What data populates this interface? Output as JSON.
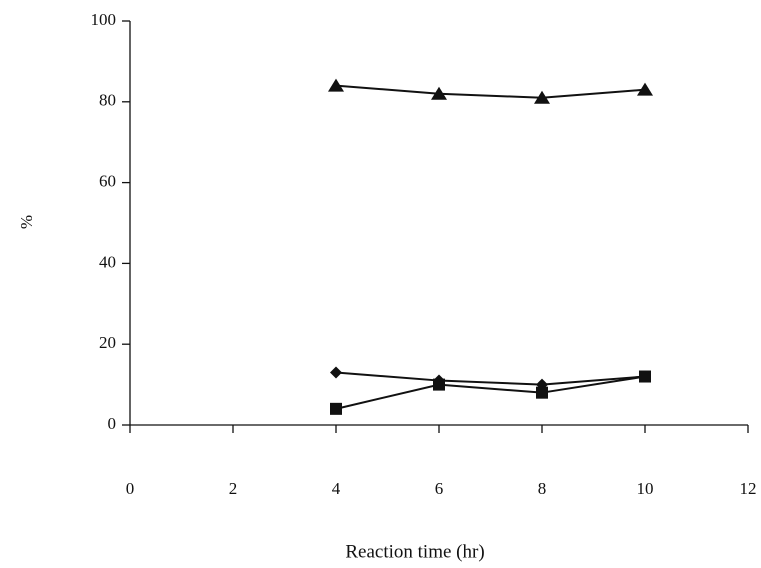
{
  "chart_data": {
    "type": "line",
    "x_label": "Reaction time (hr)",
    "y_label": "%",
    "xlim": [
      0,
      12
    ],
    "xticks": [
      0,
      2,
      4,
      6,
      8,
      10,
      12
    ],
    "ylim": [
      0,
      100
    ],
    "yticks": [
      0,
      20,
      40,
      60,
      80,
      100
    ],
    "x": [
      4,
      6,
      8,
      10
    ],
    "series": [
      {
        "marker": "triangle",
        "color": "#111111",
        "values": [
          84,
          82,
          81,
          83
        ]
      },
      {
        "marker": "diamond",
        "color": "#111111",
        "values": [
          13,
          11,
          10,
          12
        ]
      },
      {
        "marker": "square",
        "color": "#111111",
        "values": [
          4,
          10,
          8,
          12
        ]
      }
    ]
  }
}
